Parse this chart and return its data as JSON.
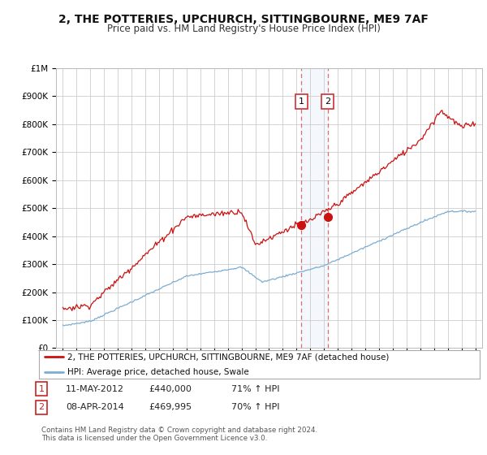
{
  "title": "2, THE POTTERIES, UPCHURCH, SITTINGBOURNE, ME9 7AF",
  "subtitle": "Price paid vs. HM Land Registry's House Price Index (HPI)",
  "title_fontsize": 10,
  "subtitle_fontsize": 8.5,
  "background_color": "#ffffff",
  "grid_color": "#cccccc",
  "hpi_color": "#7aadd4",
  "price_color": "#cc1111",
  "ylim": [
    0,
    1000000
  ],
  "yticks": [
    0,
    100000,
    200000,
    300000,
    400000,
    500000,
    600000,
    700000,
    800000,
    900000,
    1000000
  ],
  "ytick_labels": [
    "£0",
    "£100K",
    "£200K",
    "£300K",
    "£400K",
    "£500K",
    "£600K",
    "£700K",
    "£800K",
    "£900K",
    "£1M"
  ],
  "transactions": [
    {
      "label": "1",
      "date": "11-MAY-2012",
      "price": 440000,
      "hpi_pct": "71% ↑ HPI",
      "x": 2012.36
    },
    {
      "label": "2",
      "date": "08-APR-2014",
      "price": 469995,
      "hpi_pct": "70% ↑ HPI",
      "x": 2014.27
    }
  ],
  "legend_entries": [
    "2, THE POTTERIES, UPCHURCH, SITTINGBOURNE, ME9 7AF (detached house)",
    "HPI: Average price, detached house, Swale"
  ],
  "footer": "Contains HM Land Registry data © Crown copyright and database right 2024.\nThis data is licensed under the Open Government Licence v3.0.",
  "xlim": [
    1994.5,
    2025.5
  ]
}
